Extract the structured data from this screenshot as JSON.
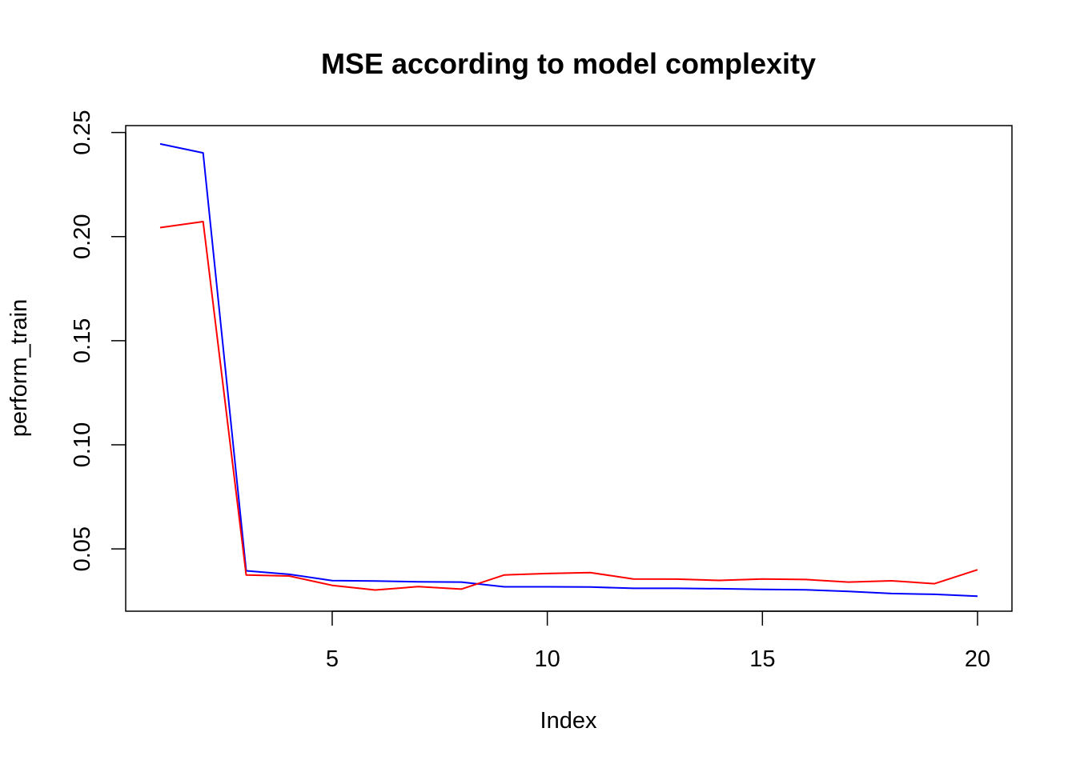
{
  "chart_data": {
    "type": "line",
    "title": "MSE according to model complexity",
    "xlabel": "Index",
    "ylabel": "perform_train",
    "xlim": [
      0.2,
      20.8
    ],
    "ylim": [
      0.0201,
      0.2533
    ],
    "x_ticks": [
      5,
      10,
      15,
      20
    ],
    "y_ticks": [
      0.05,
      0.1,
      0.15,
      0.2,
      0.25
    ],
    "y_tick_labels": [
      "0.05",
      "0.10",
      "0.15",
      "0.20",
      "0.25"
    ],
    "grid": false,
    "legend": "none",
    "x": [
      1,
      2,
      3,
      4,
      5,
      6,
      7,
      8,
      9,
      10,
      11,
      12,
      13,
      14,
      15,
      16,
      17,
      18,
      19,
      20
    ],
    "series": [
      {
        "color": "#0000ff",
        "values": [
          0.2445,
          0.2402,
          0.0395,
          0.0378,
          0.0348,
          0.0346,
          0.0342,
          0.0341,
          0.0318,
          0.0318,
          0.0317,
          0.0311,
          0.0311,
          0.0309,
          0.0306,
          0.0304,
          0.0296,
          0.0286,
          0.0282,
          0.0273
        ]
      },
      {
        "color": "#ff0000",
        "values": [
          0.2043,
          0.2072,
          0.0375,
          0.037,
          0.0325,
          0.0303,
          0.0319,
          0.0307,
          0.0375,
          0.0382,
          0.0386,
          0.0356,
          0.0355,
          0.0349,
          0.0356,
          0.0353,
          0.0341,
          0.0347,
          0.0333,
          0.04
        ]
      }
    ]
  }
}
